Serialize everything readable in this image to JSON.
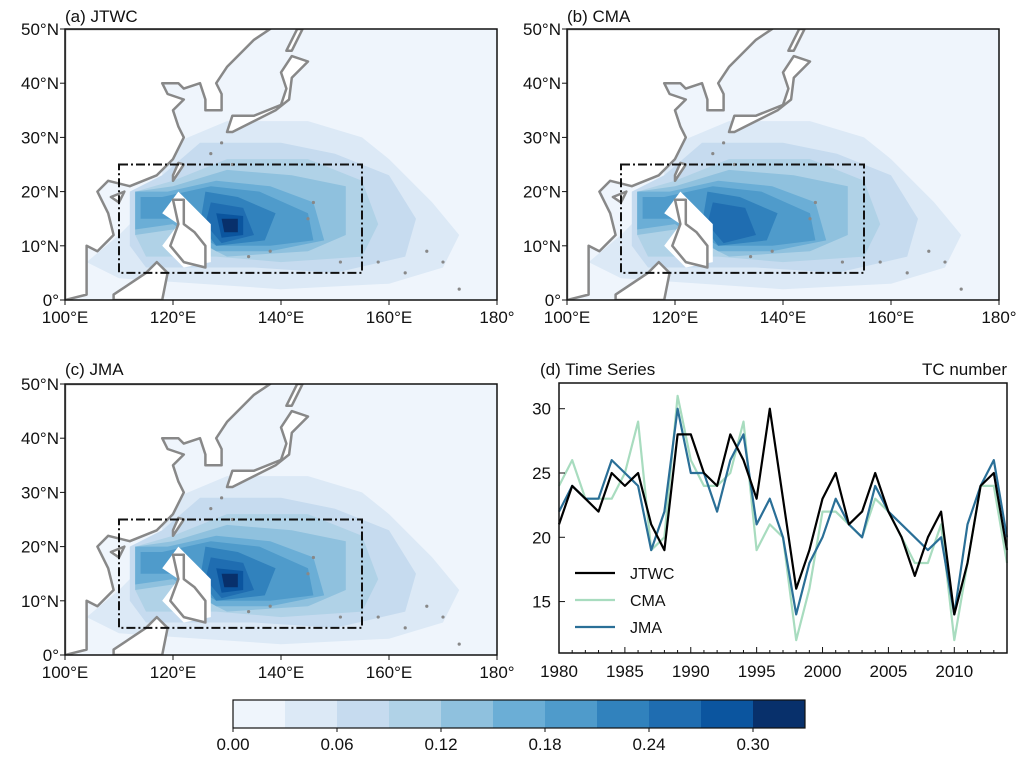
{
  "chart_data": [
    {
      "type": "heatmap",
      "title": "(a) JTWC",
      "xticks": [
        "100°E",
        "120°E",
        "140°E",
        "160°E",
        "180°"
      ],
      "yticks": [
        "0°",
        "10°N",
        "20°N",
        "30°N",
        "40°N",
        "50°N"
      ],
      "xlim": [
        100,
        180
      ],
      "ylim": [
        0,
        50
      ],
      "box_region": {
        "lon": [
          110,
          155
        ],
        "lat": [
          5,
          25
        ]
      },
      "max_value_approx": 0.3
    },
    {
      "type": "heatmap",
      "title": "(b) CMA",
      "xticks": [
        "100°E",
        "120°E",
        "140°E",
        "160°E",
        "180°"
      ],
      "yticks": [
        "0°",
        "10°N",
        "20°N",
        "30°N",
        "40°N",
        "50°N"
      ],
      "xlim": [
        100,
        180
      ],
      "ylim": [
        0,
        50
      ],
      "box_region": {
        "lon": [
          110,
          155
        ],
        "lat": [
          5,
          25
        ]
      },
      "max_value_approx": 0.27
    },
    {
      "type": "heatmap",
      "title": "(c) JMA",
      "xticks": [
        "100°E",
        "120°E",
        "140°E",
        "160°E",
        "180°"
      ],
      "yticks": [
        "0°",
        "10°N",
        "20°N",
        "30°N",
        "40°N",
        "50°N"
      ],
      "xlim": [
        100,
        180
      ],
      "ylim": [
        0,
        50
      ],
      "box_region": {
        "lon": [
          110,
          155
        ],
        "lat": [
          5,
          25
        ]
      },
      "max_value_approx": 0.3
    },
    {
      "type": "line",
      "title": "(d) Time Series",
      "title_right": "TC number",
      "xlim": [
        1980,
        2014
      ],
      "ylim": [
        11,
        32
      ],
      "xticks": [
        "1980",
        "1985",
        "1990",
        "1995",
        "2000",
        "2005",
        "2010"
      ],
      "yticks": [
        "15",
        "20",
        "25",
        "30"
      ],
      "legend_placement": "lower-left",
      "x": [
        1980,
        1981,
        1982,
        1983,
        1984,
        1985,
        1986,
        1987,
        1988,
        1989,
        1990,
        1991,
        1992,
        1993,
        1994,
        1995,
        1996,
        1997,
        1998,
        1999,
        2000,
        2001,
        2002,
        2003,
        2004,
        2005,
        2006,
        2007,
        2008,
        2009,
        2010,
        2011,
        2012,
        2013,
        2014
      ],
      "series": [
        {
          "name": "JTWC",
          "color": "#000000",
          "values": [
            21,
            24,
            23,
            22,
            25,
            24,
            25,
            21,
            19,
            28,
            28,
            25,
            24,
            28,
            26,
            23,
            30,
            23,
            16,
            19,
            23,
            25,
            21,
            22,
            25,
            22,
            20,
            17,
            20,
            22,
            14,
            18,
            24,
            25,
            19
          ]
        },
        {
          "name": "CMA",
          "color": "#a8dcbf",
          "values": [
            24,
            26,
            23,
            23,
            23,
            25,
            29,
            19,
            20,
            31,
            26,
            24,
            24,
            25,
            29,
            19,
            21,
            20,
            12,
            16,
            22,
            22,
            21,
            20,
            23,
            22,
            20,
            18,
            18,
            21,
            12,
            18,
            24,
            24,
            18
          ]
        },
        {
          "name": "JMA",
          "color": "#2a6f97",
          "values": [
            22,
            24,
            23,
            23,
            26,
            25,
            24,
            19,
            22,
            30,
            25,
            25,
            22,
            26,
            28,
            21,
            23,
            20,
            14,
            18,
            20,
            23,
            21,
            20,
            24,
            22,
            21,
            20,
            19,
            20,
            14,
            21,
            24,
            26,
            20
          ]
        }
      ]
    }
  ],
  "colorbar": {
    "ticks": [
      "0.00",
      "0.06",
      "0.12",
      "0.18",
      "0.24",
      "0.30"
    ],
    "colors": [
      "#eff5fc",
      "#dce9f6",
      "#c6dbef",
      "#b0d2e7",
      "#8fc1de",
      "#6baed6",
      "#4f9bcb",
      "#3182bd",
      "#1f6db1",
      "#0b559f",
      "#08306b"
    ]
  }
}
